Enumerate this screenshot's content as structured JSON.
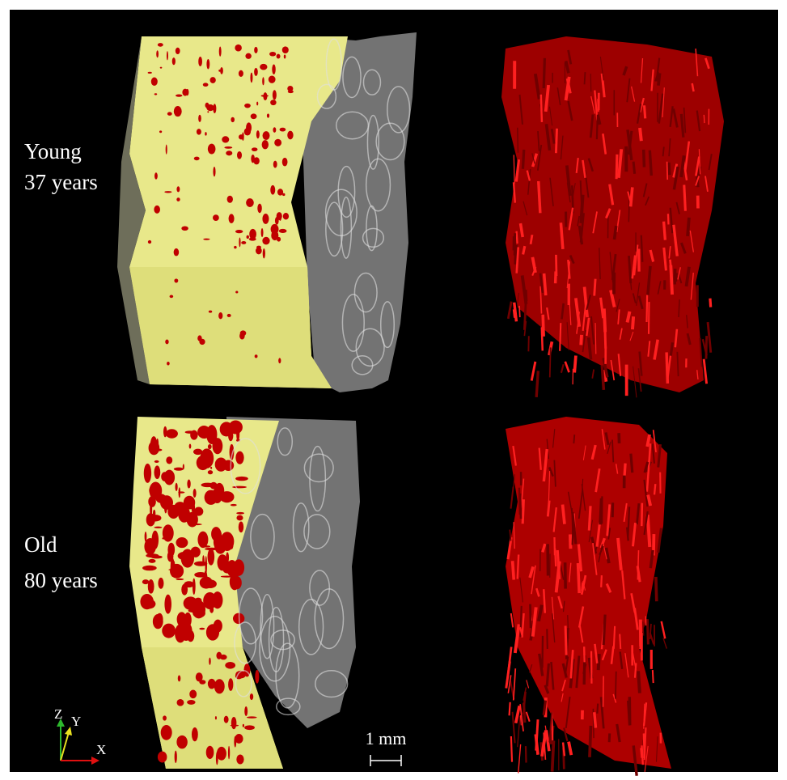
{
  "panels": [
    {
      "label": "Young",
      "age": "37 years"
    },
    {
      "label": "Old",
      "age": "80 years"
    }
  ],
  "scale_bar": "1 mm",
  "axes": {
    "z": "Z",
    "y": "Y",
    "x": "X"
  }
}
